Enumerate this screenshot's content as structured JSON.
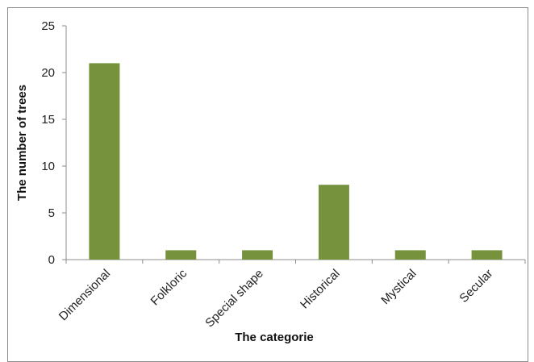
{
  "chart_data": {
    "type": "bar",
    "categories": [
      "Dimensional",
      "Folkloric",
      "Special shape",
      "Historical",
      "Mystical",
      "Secular"
    ],
    "values": [
      21,
      1,
      1,
      8,
      1,
      1
    ],
    "xlabel": "The categorie",
    "ylabel": "The number of trees",
    "ylim": [
      0,
      25
    ],
    "yticks": [
      0,
      5,
      10,
      15,
      20,
      25
    ],
    "grid": false,
    "legend": "none",
    "bar_color": "#76923c",
    "axis_color": "#8c8c8c"
  }
}
